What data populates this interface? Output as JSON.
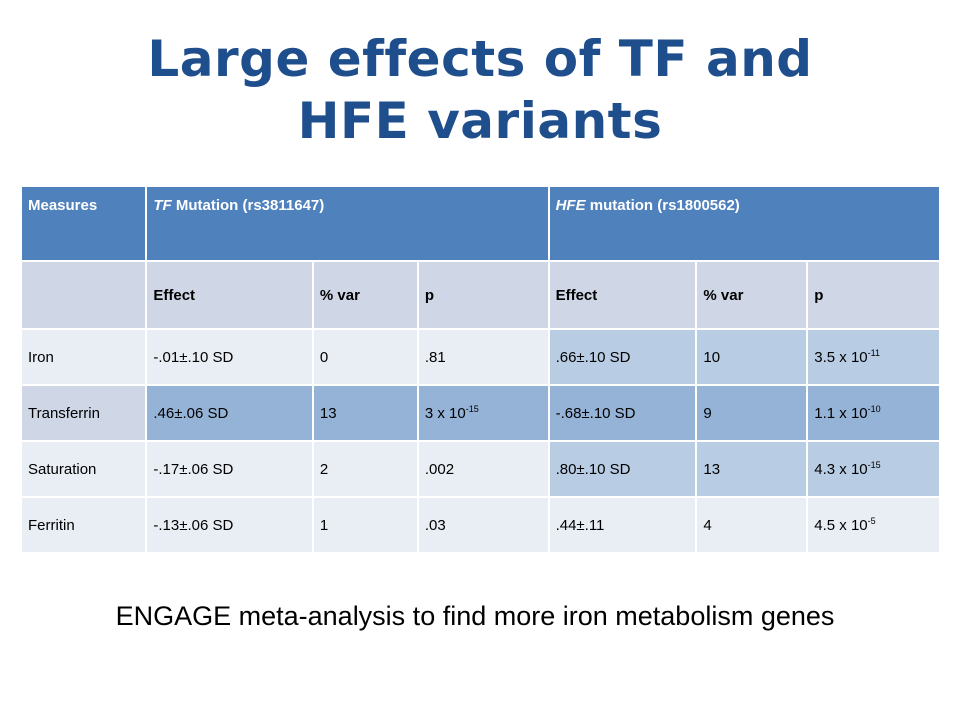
{
  "title": {
    "line1": "Large effects of TF and",
    "line2": "HFE variants"
  },
  "table": {
    "header": {
      "measures": "Measures",
      "tf_gene": "TF",
      "tf_rest": " Mutation (rs3811647)",
      "hfe_gene": "HFE",
      "hfe_rest": " mutation (rs1800562)"
    },
    "subheader": {
      "blank": "",
      "tf_effect": "Effect",
      "tf_var": "% var",
      "tf_p": "p",
      "hfe_effect": "Effect",
      "hfe_var": "% var",
      "hfe_p": "p"
    },
    "rows": [
      {
        "measure": "Iron",
        "tf_effect": "-.01±.10 SD",
        "tf_var": "0",
        "tf_p_base": ".81",
        "tf_p_exp": "",
        "hfe_effect": ".66±.10 SD",
        "hfe_var": "10",
        "hfe_p_base": "3.5 x 10",
        "hfe_p_exp": "-11"
      },
      {
        "measure": "Transferrin",
        "tf_effect": ".46±.06 SD",
        "tf_var": "13",
        "tf_p_base": "3 x 10",
        "tf_p_exp": "-15",
        "hfe_effect": "-.68±.10 SD",
        "hfe_var": "9",
        "hfe_p_base": "1.1 x 10",
        "hfe_p_exp": "-10"
      },
      {
        "measure": "Saturation",
        "tf_effect": "-.17±.06 SD",
        "tf_var": "2",
        "tf_p_base": ".002",
        "tf_p_exp": "",
        "hfe_effect": ".80±.10 SD",
        "hfe_var": "13",
        "hfe_p_base": "4.3 x 10",
        "hfe_p_exp": "-15"
      },
      {
        "measure": "Ferritin",
        "tf_effect": "-.13±.06 SD",
        "tf_var": "1",
        "tf_p_base": ".03",
        "tf_p_exp": "",
        "hfe_effect": ".44±.11",
        "hfe_var": "4",
        "hfe_p_base": "4.5 x 10",
        "hfe_p_exp": "-5"
      }
    ]
  },
  "footer": "ENGAGE meta-analysis to find more iron metabolism genes",
  "colors": {
    "title": "#1f4e8c",
    "header_bg": "#4f81bd",
    "subheader_bg": "#cfd7e7",
    "row_light": "#e9edf4",
    "row_light_highlight": "#b8cce4",
    "row_dark": "#cfd7e7",
    "row_dark_highlight": "#95b3d7"
  }
}
